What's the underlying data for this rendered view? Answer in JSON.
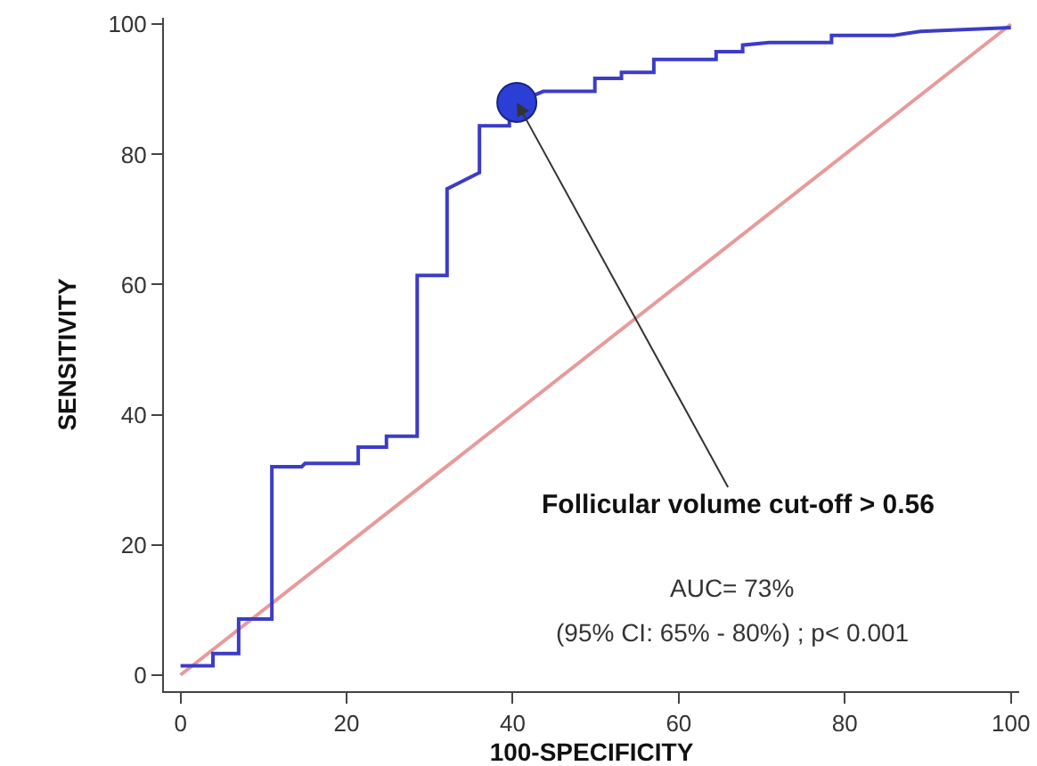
{
  "chart_data": {
    "type": "line",
    "xlabel": "100-SPECIFICITY",
    "ylabel": "SENSITIVITY",
    "xlim": [
      -2,
      101
    ],
    "ylim": [
      -2.5,
      101
    ],
    "xticks": [
      0,
      20,
      40,
      60,
      80,
      100
    ],
    "yticks": [
      0,
      20,
      40,
      60,
      80,
      100
    ],
    "grid": false,
    "marker": "none",
    "line_style": "solid",
    "series": [
      {
        "color": "#e89a9a",
        "x": [
          0,
          100
        ],
        "values": [
          0,
          100
        ]
      },
      {
        "color": "#3c3cc8",
        "x": [
          0,
          3.9,
          3.9,
          7,
          7,
          11,
          11,
          14.6,
          15,
          21.4,
          21.4,
          24.8,
          24.8,
          28.5,
          28.5,
          32.1,
          32.1,
          36,
          36,
          39.6,
          39.6,
          40.5,
          43.7,
          49.9,
          49.9,
          53.1,
          53.1,
          57,
          57,
          64.5,
          64.5,
          67.7,
          67.7,
          70.9,
          78.4,
          78.4,
          85.9,
          89.1,
          100
        ],
        "values": [
          1.4,
          1.4,
          3.3,
          3.3,
          8.6,
          8.6,
          32,
          32,
          32.5,
          32.5,
          35,
          35,
          36.7,
          36.7,
          61.4,
          61.4,
          74.7,
          77.2,
          84.4,
          84.4,
          86,
          88,
          89.7,
          89.7,
          91.7,
          91.7,
          92.6,
          92.6,
          94.6,
          94.6,
          95.8,
          95.8,
          96.8,
          97.2,
          97.2,
          98.3,
          98.3,
          98.9,
          99.5
        ]
      },
      {
        "type": "scatter",
        "color": "#2b3fd6",
        "marker": "circle",
        "x": [
          40.5
        ],
        "values": [
          88
        ]
      }
    ],
    "annotations": [
      {
        "text": "Follicular volume cut-off > 0.56",
        "x": 40.5,
        "y": 88
      },
      "AUC= 73%",
      "(95% CI: 65% - 80%) ; p< 0.001"
    ]
  }
}
